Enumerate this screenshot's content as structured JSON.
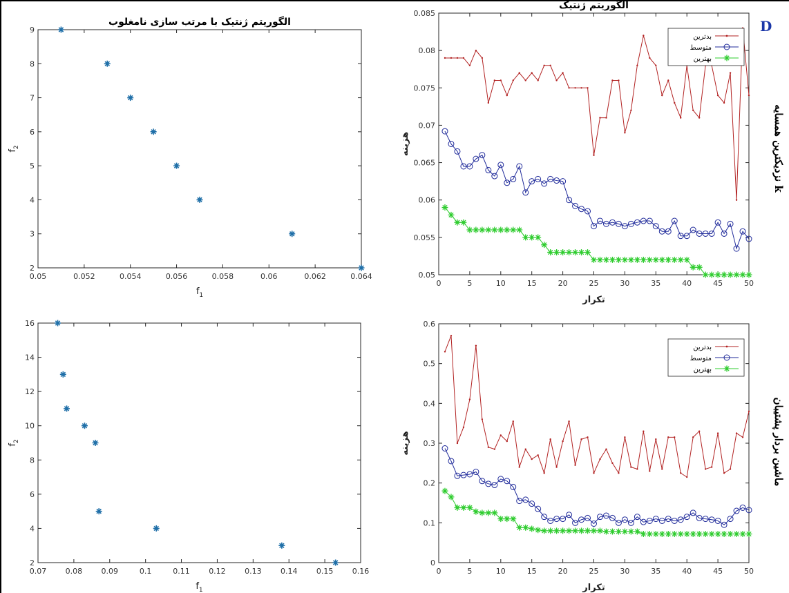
{
  "panel_letter": "D",
  "row_labels": [
    "نزدیکترین همسایه k",
    "ماشین بردار پشتیبان"
  ],
  "colors": {
    "worst": "#b22222",
    "avg": "#1f2a9a",
    "best": "#2ecc2e",
    "scatter": "#1f6fa8"
  },
  "chart_data": [
    {
      "type": "scatter",
      "title": "الگوریتم ژنتیک با مرتب سازی نامغلوب",
      "xlabel": "f1",
      "ylabel": "f2",
      "xlim": [
        0.05,
        0.064
      ],
      "ylim": [
        2,
        9
      ],
      "xticks": [
        0.05,
        0.052,
        0.054,
        0.056,
        0.058,
        0.06,
        0.062,
        0.064
      ],
      "xticklabels": [
        "0.05",
        "0.052",
        "0.054",
        "0.056",
        "0.058",
        "0.06",
        "0.062",
        "0.064"
      ],
      "yticks": [
        2,
        3,
        4,
        5,
        6,
        7,
        8,
        9
      ],
      "yticklabels": [
        "2",
        "3",
        "4",
        "5",
        "6",
        "7",
        "8",
        "9"
      ],
      "points": [
        [
          0.051,
          9
        ],
        [
          0.053,
          8
        ],
        [
          0.054,
          7
        ],
        [
          0.055,
          6
        ],
        [
          0.056,
          5
        ],
        [
          0.057,
          4
        ],
        [
          0.061,
          3
        ],
        [
          0.064,
          2
        ]
      ]
    },
    {
      "type": "line",
      "title": "الگوریتم ژنتیک",
      "xlabel": "تکرار",
      "ylabel": "هزینه",
      "xlim": [
        0,
        50
      ],
      "ylim": [
        0.05,
        0.085
      ],
      "xticks": [
        0,
        5,
        10,
        15,
        20,
        25,
        30,
        35,
        40,
        45,
        50
      ],
      "xticklabels": [
        "0",
        "5",
        "10",
        "15",
        "20",
        "25",
        "30",
        "35",
        "40",
        "45",
        "50"
      ],
      "yticks": [
        0.05,
        0.055,
        0.06,
        0.065,
        0.07,
        0.075,
        0.08,
        0.085
      ],
      "yticklabels": [
        "0.05",
        "0.055",
        "0.06",
        "0.065",
        "0.07",
        "0.075",
        "0.08",
        "0.085"
      ],
      "legend_position": "top-right",
      "series": [
        {
          "name": "بدترین",
          "key": "worst",
          "values": [
            0.079,
            0.079,
            0.079,
            0.079,
            0.078,
            0.08,
            0.079,
            0.073,
            0.076,
            0.076,
            0.074,
            0.076,
            0.077,
            0.076,
            0.077,
            0.076,
            0.078,
            0.078,
            0.076,
            0.077,
            0.075,
            0.075,
            0.075,
            0.075,
            0.066,
            0.071,
            0.071,
            0.076,
            0.076,
            0.069,
            0.072,
            0.078,
            0.082,
            0.079,
            0.078,
            0.074,
            0.076,
            0.073,
            0.071,
            0.078,
            0.072,
            0.071,
            0.078,
            0.078,
            0.074,
            0.073,
            0.077,
            0.06,
            0.083,
            0.074
          ]
        },
        {
          "name": "متوسط",
          "key": "avg",
          "values": [
            0.0692,
            0.0675,
            0.0665,
            0.0645,
            0.0645,
            0.0655,
            0.066,
            0.064,
            0.0632,
            0.0647,
            0.0623,
            0.0628,
            0.0645,
            0.061,
            0.0625,
            0.0628,
            0.0622,
            0.0628,
            0.0626,
            0.0625,
            0.06,
            0.0592,
            0.0588,
            0.0585,
            0.0565,
            0.0572,
            0.0568,
            0.057,
            0.0568,
            0.0565,
            0.0568,
            0.057,
            0.0572,
            0.0572,
            0.0565,
            0.0558,
            0.0558,
            0.0572,
            0.0552,
            0.0552,
            0.056,
            0.0555,
            0.0555,
            0.0555,
            0.057,
            0.0555,
            0.0568,
            0.0535,
            0.0558,
            0.0548
          ]
        },
        {
          "name": "بهترین",
          "key": "best",
          "values": [
            0.059,
            0.058,
            0.057,
            0.057,
            0.056,
            0.056,
            0.056,
            0.056,
            0.056,
            0.056,
            0.056,
            0.056,
            0.056,
            0.055,
            0.055,
            0.055,
            0.054,
            0.053,
            0.053,
            0.053,
            0.053,
            0.053,
            0.053,
            0.053,
            0.052,
            0.052,
            0.052,
            0.052,
            0.052,
            0.052,
            0.052,
            0.052,
            0.052,
            0.052,
            0.052,
            0.052,
            0.052,
            0.052,
            0.052,
            0.052,
            0.051,
            0.051,
            0.05,
            0.05,
            0.05,
            0.05,
            0.05,
            0.05,
            0.05,
            0.05
          ]
        }
      ]
    },
    {
      "type": "scatter",
      "title": "",
      "xlabel": "f1",
      "ylabel": "f2",
      "xlim": [
        0.07,
        0.16
      ],
      "ylim": [
        2,
        16
      ],
      "xticks": [
        0.07,
        0.08,
        0.09,
        0.1,
        0.11,
        0.12,
        0.13,
        0.14,
        0.15,
        0.16
      ],
      "xticklabels": [
        "0.07",
        "0.08",
        "0.09",
        "0.1",
        "0.11",
        "0.12",
        "0.13",
        "0.14",
        "0.15",
        "0.16"
      ],
      "yticks": [
        2,
        4,
        6,
        8,
        10,
        12,
        14,
        16
      ],
      "yticklabels": [
        "2",
        "4",
        "6",
        "8",
        "10",
        "12",
        "14",
        "16"
      ],
      "points": [
        [
          0.0755,
          16
        ],
        [
          0.077,
          13
        ],
        [
          0.078,
          11
        ],
        [
          0.083,
          10
        ],
        [
          0.086,
          9
        ],
        [
          0.087,
          5
        ],
        [
          0.103,
          4
        ],
        [
          0.138,
          3
        ],
        [
          0.153,
          2
        ]
      ]
    },
    {
      "type": "line",
      "title": "",
      "xlabel": "تکرار",
      "ylabel": "هزینه",
      "xlim": [
        0,
        50
      ],
      "ylim": [
        0,
        0.6
      ],
      "xticks": [
        0,
        5,
        10,
        15,
        20,
        25,
        30,
        35,
        40,
        45,
        50
      ],
      "xticklabels": [
        "0",
        "5",
        "10",
        "15",
        "20",
        "25",
        "30",
        "35",
        "40",
        "45",
        "50"
      ],
      "yticks": [
        0,
        0.1,
        0.2,
        0.3,
        0.4,
        0.5,
        0.6
      ],
      "yticklabels": [
        "0",
        "0.1",
        "0.2",
        "0.3",
        "0.4",
        "0.5",
        "0.6"
      ],
      "legend_position": "top-right",
      "series": [
        {
          "name": "بدترین",
          "key": "worst",
          "values": [
            0.53,
            0.57,
            0.3,
            0.34,
            0.41,
            0.545,
            0.36,
            0.29,
            0.285,
            0.32,
            0.305,
            0.355,
            0.24,
            0.285,
            0.26,
            0.27,
            0.225,
            0.31,
            0.24,
            0.305,
            0.355,
            0.245,
            0.31,
            0.315,
            0.225,
            0.26,
            0.285,
            0.25,
            0.225,
            0.315,
            0.24,
            0.235,
            0.33,
            0.23,
            0.31,
            0.235,
            0.315,
            0.315,
            0.225,
            0.215,
            0.315,
            0.33,
            0.235,
            0.24,
            0.325,
            0.225,
            0.235,
            0.325,
            0.315,
            0.38
          ]
        },
        {
          "name": "متوسط",
          "key": "avg",
          "values": [
            0.287,
            0.255,
            0.218,
            0.22,
            0.222,
            0.228,
            0.205,
            0.198,
            0.195,
            0.21,
            0.205,
            0.19,
            0.155,
            0.158,
            0.148,
            0.135,
            0.115,
            0.105,
            0.11,
            0.11,
            0.12,
            0.1,
            0.108,
            0.112,
            0.098,
            0.115,
            0.118,
            0.112,
            0.1,
            0.108,
            0.1,
            0.115,
            0.102,
            0.105,
            0.11,
            0.105,
            0.11,
            0.105,
            0.108,
            0.115,
            0.125,
            0.112,
            0.11,
            0.108,
            0.105,
            0.095,
            0.11,
            0.13,
            0.138,
            0.132
          ]
        },
        {
          "name": "بهترین",
          "key": "best",
          "values": [
            0.18,
            0.165,
            0.138,
            0.138,
            0.138,
            0.128,
            0.125,
            0.125,
            0.125,
            0.11,
            0.11,
            0.11,
            0.088,
            0.088,
            0.085,
            0.082,
            0.08,
            0.08,
            0.08,
            0.08,
            0.08,
            0.08,
            0.08,
            0.08,
            0.08,
            0.08,
            0.078,
            0.078,
            0.078,
            0.078,
            0.078,
            0.078,
            0.072,
            0.072,
            0.072,
            0.072,
            0.072,
            0.072,
            0.072,
            0.072,
            0.072,
            0.072,
            0.072,
            0.072,
            0.072,
            0.072,
            0.072,
            0.072,
            0.072,
            0.072
          ]
        }
      ]
    }
  ]
}
